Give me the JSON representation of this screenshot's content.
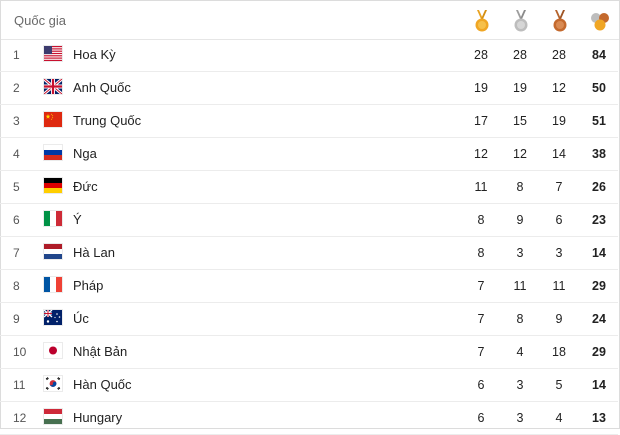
{
  "header": {
    "country_label": "Quốc gia",
    "medal_icons": [
      "gold-medal-icon",
      "silver-medal-icon",
      "bronze-medal-icon",
      "total-medals-icon"
    ]
  },
  "colors": {
    "gold": "#f0a624",
    "silver": "#bdbdbd",
    "bronze": "#c4692d",
    "ribbon_gold": "#e9a321",
    "ribbon_silver": "#9e9e9e",
    "ribbon_bronze": "#b5642d"
  },
  "rows": [
    {
      "rank": "1",
      "country": "Hoa Kỳ",
      "flag": "usa",
      "gold": "28",
      "silver": "28",
      "bronze": "28",
      "total": "84"
    },
    {
      "rank": "2",
      "country": "Anh Quốc",
      "flag": "uk",
      "gold": "19",
      "silver": "19",
      "bronze": "12",
      "total": "50"
    },
    {
      "rank": "3",
      "country": "Trung Quốc",
      "flag": "china",
      "gold": "17",
      "silver": "15",
      "bronze": "19",
      "total": "51"
    },
    {
      "rank": "4",
      "country": "Nga",
      "flag": "russia",
      "gold": "12",
      "silver": "12",
      "bronze": "14",
      "total": "38"
    },
    {
      "rank": "5",
      "country": "Đức",
      "flag": "germany",
      "gold": "11",
      "silver": "8",
      "bronze": "7",
      "total": "26"
    },
    {
      "rank": "6",
      "country": "Ý",
      "flag": "italy",
      "gold": "8",
      "silver": "9",
      "bronze": "6",
      "total": "23"
    },
    {
      "rank": "7",
      "country": "Hà Lan",
      "flag": "netherlands",
      "gold": "8",
      "silver": "3",
      "bronze": "3",
      "total": "14"
    },
    {
      "rank": "8",
      "country": "Pháp",
      "flag": "france",
      "gold": "7",
      "silver": "11",
      "bronze": "11",
      "total": "29"
    },
    {
      "rank": "9",
      "country": "Úc",
      "flag": "australia",
      "gold": "7",
      "silver": "8",
      "bronze": "9",
      "total": "24"
    },
    {
      "rank": "10",
      "country": "Nhật Bản",
      "flag": "japan",
      "gold": "7",
      "silver": "4",
      "bronze": "18",
      "total": "29"
    },
    {
      "rank": "11",
      "country": "Hàn Quốc",
      "flag": "south-korea",
      "gold": "6",
      "silver": "3",
      "bronze": "5",
      "total": "14"
    },
    {
      "rank": "12",
      "country": "Hungary",
      "flag": "hungary",
      "gold": "6",
      "silver": "3",
      "bronze": "4",
      "total": "13"
    }
  ]
}
